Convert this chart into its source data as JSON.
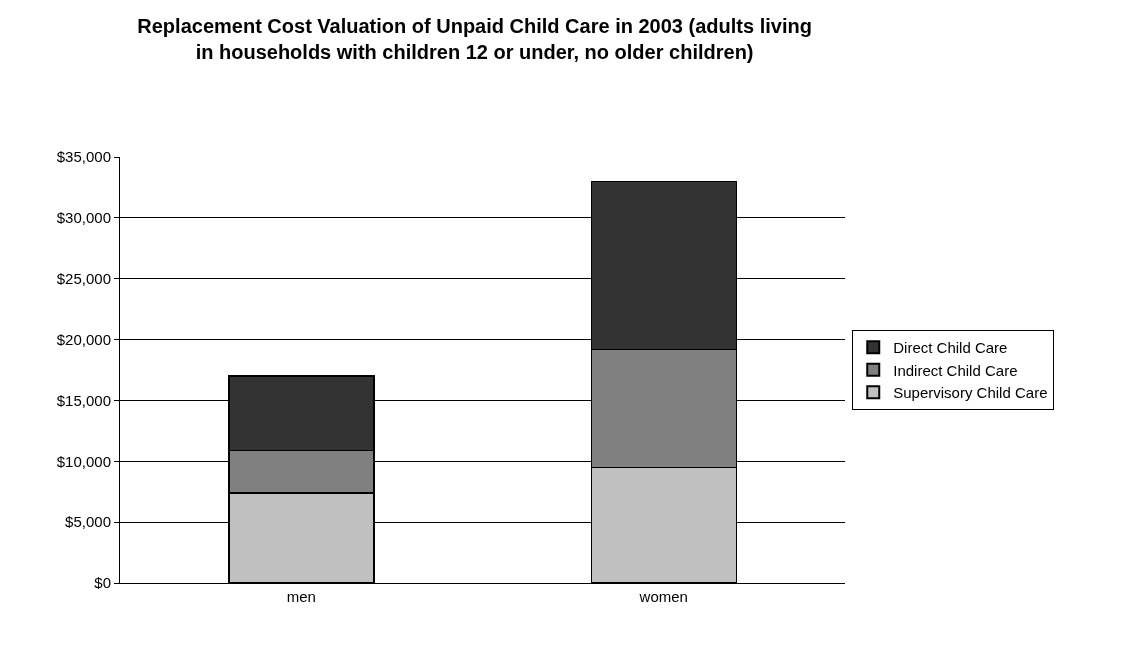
{
  "chart_data": {
    "type": "bar",
    "stacked": true,
    "title": "Replacement Cost Valuation of Unpaid Child Care in 2003 (adults living in households with children 12 or under, no older children)",
    "categories": [
      "men",
      "women"
    ],
    "series": [
      {
        "name": "Supervisory Child Care",
        "color": "#c0c0c0",
        "values": [
          7400,
          9500
        ]
      },
      {
        "name": "Indirect Child Care",
        "color": "#808080",
        "values": [
          3500,
          9700
        ]
      },
      {
        "name": "Direct Child Care",
        "color": "#333333",
        "values": [
          6100,
          13800
        ]
      }
    ],
    "ylim": [
      0,
      35000
    ],
    "yticks": [
      {
        "value": 0,
        "label": "$0"
      },
      {
        "value": 5000,
        "label": "$5,000"
      },
      {
        "value": 10000,
        "label": "$10,000"
      },
      {
        "value": 15000,
        "label": "$15,000"
      },
      {
        "value": 20000,
        "label": "$20,000"
      },
      {
        "value": 25000,
        "label": "$25,000"
      },
      {
        "value": 30000,
        "label": "$30,000"
      },
      {
        "value": 35000,
        "label": "$35,000"
      }
    ],
    "grid": "y",
    "legend": "right"
  }
}
